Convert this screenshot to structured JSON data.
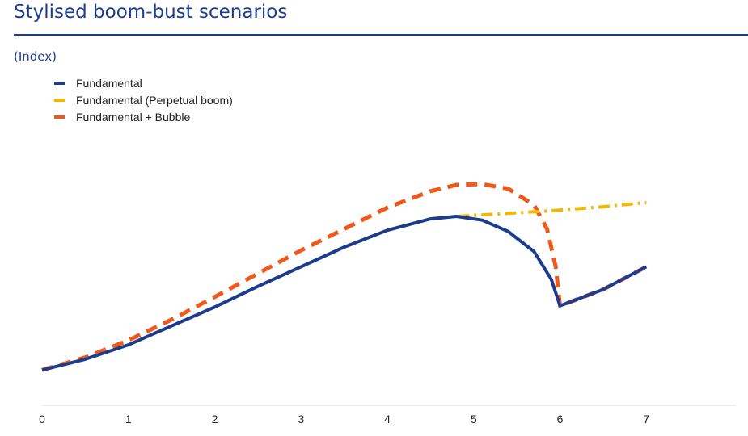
{
  "header": {
    "title": "Stylised boom-bust scenarios",
    "subtitle": "(Index)"
  },
  "chart_data": {
    "type": "line",
    "title": "Stylised boom-bust scenarios",
    "ylabel": "(Index)",
    "xlabel": "",
    "xlim": [
      0,
      8
    ],
    "ylim": [
      0,
      100
    ],
    "x_ticks": [
      0,
      1,
      2,
      3,
      4,
      5,
      6,
      7
    ],
    "grid": false,
    "legend_position": "top-left",
    "series": [
      {
        "name": "Fundamental",
        "color": "#1b3c8f",
        "style": "solid",
        "points": [
          [
            0,
            14
          ],
          [
            0.5,
            18.3
          ],
          [
            1,
            24
          ],
          [
            1.5,
            31.5
          ],
          [
            2,
            39
          ],
          [
            2.5,
            47.2
          ],
          [
            3,
            55
          ],
          [
            3.5,
            62.8
          ],
          [
            4,
            69.5
          ],
          [
            4.5,
            74
          ],
          [
            4.8,
            75
          ],
          [
            5.1,
            73.5
          ],
          [
            5.4,
            69
          ],
          [
            5.7,
            61
          ],
          [
            5.9,
            50
          ],
          [
            6,
            39.5
          ],
          [
            6.5,
            46
          ],
          [
            7,
            55
          ]
        ]
      },
      {
        "name": "Fundamental (Perpetual boom)",
        "color": "#f2b705",
        "style": "dashdot",
        "points": [
          [
            0,
            14
          ],
          [
            0.5,
            18.3
          ],
          [
            1,
            24
          ],
          [
            1.5,
            31.5
          ],
          [
            2,
            39
          ],
          [
            2.5,
            47.2
          ],
          [
            3,
            55
          ],
          [
            3.5,
            62.8
          ],
          [
            4,
            69.5
          ],
          [
            4.5,
            74
          ],
          [
            4.8,
            75
          ],
          [
            5.2,
            75.8
          ],
          [
            5.6,
            76.6
          ],
          [
            6,
            77.5
          ],
          [
            6.5,
            78.8
          ],
          [
            7,
            80.5
          ]
        ]
      },
      {
        "name": "Fundamental + Bubble",
        "color": "#ef5a1c",
        "style": "dashed",
        "points": [
          [
            0,
            14
          ],
          [
            0.5,
            19
          ],
          [
            1,
            25.8
          ],
          [
            1.5,
            34
          ],
          [
            2,
            43
          ],
          [
            2.5,
            52.3
          ],
          [
            3,
            61.5
          ],
          [
            3.5,
            70
          ],
          [
            4,
            78.5
          ],
          [
            4.5,
            85
          ],
          [
            4.8,
            87.5
          ],
          [
            5.1,
            87.8
          ],
          [
            5.4,
            86
          ],
          [
            5.7,
            79.5
          ],
          [
            5.85,
            70
          ],
          [
            5.95,
            55
          ],
          [
            6,
            39.5
          ],
          [
            6.5,
            46
          ],
          [
            7,
            55
          ]
        ]
      }
    ]
  }
}
